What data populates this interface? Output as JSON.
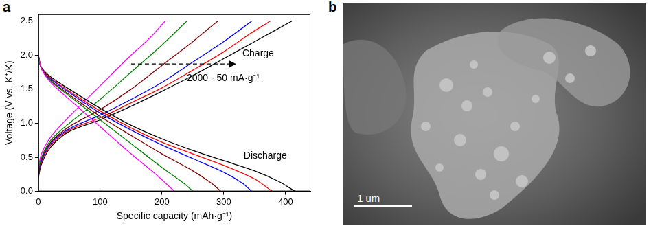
{
  "chart_data": {
    "type": "line",
    "x_label": "Specific capacity (mAh·g⁻¹)",
    "y_label": "Voltage (V vs. K⁺/K)",
    "xlim": [
      0,
      440
    ],
    "xticks": [
      0,
      100,
      200,
      300,
      400
    ],
    "ylim": [
      0,
      2.6
    ],
    "yticks": [
      {
        "value": 0,
        "label": "0.0"
      },
      {
        "value": 0.5,
        "label": "0.5"
      },
      {
        "value": 1,
        "label": "1.0"
      },
      {
        "value": 1.5,
        "label": "1.5"
      },
      {
        "value": 2,
        "label": "2.0"
      },
      {
        "value": 2.5,
        "label": "2.5"
      }
    ],
    "grid": false,
    "annotations": [
      "Charge",
      "Discharge",
      "2000 - 50 mA·g⁻¹"
    ],
    "series": [
      {
        "color": "#ff00ff",
        "x": [
          0,
          5,
          20,
          50,
          100,
          150,
          190,
          220
        ],
        "values": [
          2.0,
          1.8,
          1.6,
          1.35,
          0.95,
          0.55,
          0.25,
          0.0
        ]
      },
      {
        "color": "#008000",
        "x": [
          0,
          5,
          20,
          50,
          100,
          150,
          200,
          235,
          250
        ],
        "values": [
          2.0,
          1.8,
          1.62,
          1.4,
          1.05,
          0.7,
          0.35,
          0.12,
          0.0
        ]
      },
      {
        "color": "#800000",
        "x": [
          0,
          5,
          20,
          50,
          100,
          150,
          200,
          250,
          280,
          295
        ],
        "values": [
          2.0,
          1.8,
          1.63,
          1.42,
          1.1,
          0.82,
          0.55,
          0.3,
          0.12,
          0.0
        ]
      },
      {
        "color": "#0000ff",
        "x": [
          0,
          5,
          20,
          50,
          100,
          150,
          200,
          250,
          300,
          330,
          345
        ],
        "values": [
          2.0,
          1.8,
          1.65,
          1.45,
          1.15,
          0.9,
          0.68,
          0.48,
          0.28,
          0.12,
          0.0
        ]
      },
      {
        "color": "#ff0000",
        "x": [
          0,
          5,
          20,
          50,
          100,
          150,
          200,
          250,
          300,
          350,
          378
        ],
        "values": [
          2.0,
          1.8,
          1.66,
          1.47,
          1.18,
          0.93,
          0.72,
          0.55,
          0.38,
          0.18,
          0.0
        ]
      },
      {
        "color": "#000000",
        "x": [
          0,
          5,
          20,
          50,
          100,
          150,
          200,
          250,
          300,
          350,
          390,
          415
        ],
        "values": [
          2.0,
          1.82,
          1.68,
          1.5,
          1.22,
          0.97,
          0.77,
          0.6,
          0.45,
          0.3,
          0.14,
          0.0
        ]
      },
      {
        "color": "#ff00ff",
        "x": [
          0,
          5,
          20,
          50,
          100,
          150,
          180,
          205
        ],
        "values": [
          0.35,
          0.55,
          0.8,
          1.1,
          1.55,
          2.0,
          2.25,
          2.5
        ]
      },
      {
        "color": "#008000",
        "x": [
          0,
          5,
          20,
          50,
          100,
          150,
          200,
          240
        ],
        "values": [
          0.3,
          0.5,
          0.75,
          1.0,
          1.35,
          1.75,
          2.15,
          2.5
        ]
      },
      {
        "color": "#800000",
        "x": [
          0,
          5,
          20,
          50,
          100,
          150,
          200,
          250,
          290
        ],
        "values": [
          0.28,
          0.48,
          0.72,
          0.95,
          1.2,
          1.5,
          1.85,
          2.2,
          2.5
        ]
      },
      {
        "color": "#0000ff",
        "x": [
          0,
          5,
          20,
          50,
          100,
          150,
          200,
          250,
          300,
          345
        ],
        "values": [
          0.25,
          0.45,
          0.7,
          0.92,
          1.12,
          1.35,
          1.6,
          1.9,
          2.2,
          2.5
        ]
      },
      {
        "color": "#ff0000",
        "x": [
          0,
          5,
          20,
          50,
          100,
          150,
          200,
          250,
          300,
          340,
          375
        ],
        "values": [
          0.22,
          0.43,
          0.68,
          0.9,
          1.08,
          1.3,
          1.52,
          1.78,
          2.05,
          2.3,
          2.5
        ]
      },
      {
        "color": "#000000",
        "x": [
          0,
          5,
          20,
          50,
          100,
          150,
          200,
          250,
          300,
          350,
          410
        ],
        "values": [
          0.2,
          0.4,
          0.65,
          0.88,
          1.05,
          1.25,
          1.47,
          1.7,
          1.95,
          2.2,
          2.5
        ]
      }
    ]
  },
  "panel_labels": [
    "a",
    "b"
  ],
  "image": {
    "scale_bar_label": "1 um"
  }
}
